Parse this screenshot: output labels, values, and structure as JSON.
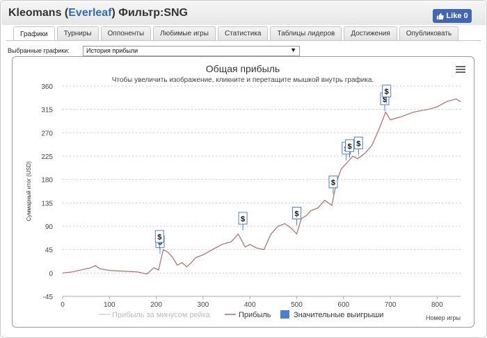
{
  "header": {
    "title_prefix": "Kleomans (",
    "title_link": "Everleaf",
    "title_suffix": ") Фильтр:SNG",
    "like_label": "Like",
    "like_count": "0"
  },
  "tabs": [
    {
      "label": "Графики",
      "active": true
    },
    {
      "label": "Турниры",
      "active": false
    },
    {
      "label": "Оппоненты",
      "active": false
    },
    {
      "label": "Любимые игры",
      "active": false
    },
    {
      "label": "Статистика",
      "active": false
    },
    {
      "label": "Таблицы лидеров",
      "active": false
    },
    {
      "label": "Достижения",
      "active": false
    },
    {
      "label": "Опубликовать",
      "active": false
    }
  ],
  "selector": {
    "label": "Выбранные графики:",
    "value": "История прибыли"
  },
  "colors": {
    "profit_line": "#b06a6a",
    "rake_line": "#d4d4d4",
    "flag": "#4a7fd6",
    "marker_legend": "#4a7fd6"
  },
  "chart_data": {
    "type": "line",
    "title": "Общая прибыль",
    "subtitle": "Чтобы увеличить изображение, кликните и перетащите мышкой внутрь графика.",
    "xlabel": "Номер игры",
    "ylabel": "Суммарный итог (USD)",
    "xlim": [
      0,
      850
    ],
    "ylim": [
      -45,
      360
    ],
    "x_ticks": [
      0,
      100,
      200,
      300,
      400,
      500,
      600,
      700,
      800
    ],
    "y_ticks": [
      -45,
      0,
      45,
      90,
      135,
      180,
      225,
      270,
      315,
      360
    ],
    "legend": [
      "Прибыль за минусом рейка",
      "Прибыль",
      "Значительные выигрыши"
    ],
    "series": [
      {
        "name": "Прибыль",
        "x": [
          0,
          20,
          40,
          60,
          70,
          80,
          100,
          120,
          140,
          160,
          180,
          195,
          205,
          215,
          225,
          235,
          245,
          255,
          265,
          275,
          285,
          300,
          320,
          340,
          360,
          375,
          390,
          400,
          415,
          430,
          445,
          460,
          475,
          490,
          500,
          510,
          520,
          530,
          545,
          560,
          575,
          585,
          595,
          600,
          610,
          620,
          630,
          645,
          660,
          675,
          690,
          700,
          720,
          750,
          780,
          800,
          820,
          840,
          850
        ],
        "y": [
          0,
          2,
          6,
          10,
          14,
          8,
          5,
          4,
          3,
          2,
          -2,
          10,
          6,
          45,
          40,
          30,
          15,
          20,
          12,
          20,
          30,
          35,
          45,
          55,
          60,
          75,
          50,
          55,
          48,
          45,
          75,
          90,
          95,
          85,
          75,
          105,
          110,
          120,
          125,
          140,
          130,
          175,
          200,
          205,
          215,
          225,
          220,
          230,
          245,
          275,
          310,
          295,
          300,
          310,
          315,
          320,
          330,
          335,
          330
        ]
      },
      {
        "name": "Значительные выигрыши",
        "type": "flag",
        "points": [
          {
            "x": 208,
            "y": 45,
            "label": "$"
          },
          {
            "x": 207,
            "y": 55,
            "label": "$"
          },
          {
            "x": 385,
            "y": 90,
            "label": "$"
          },
          {
            "x": 500,
            "y": 100,
            "label": "$"
          },
          {
            "x": 578,
            "y": 160,
            "label": "$"
          },
          {
            "x": 606,
            "y": 225,
            "label": "$"
          },
          {
            "x": 613,
            "y": 230,
            "label": "$"
          },
          {
            "x": 632,
            "y": 235,
            "label": "$"
          },
          {
            "x": 688,
            "y": 320,
            "label": "$"
          },
          {
            "x": 692,
            "y": 335,
            "label": "$"
          }
        ]
      }
    ]
  }
}
